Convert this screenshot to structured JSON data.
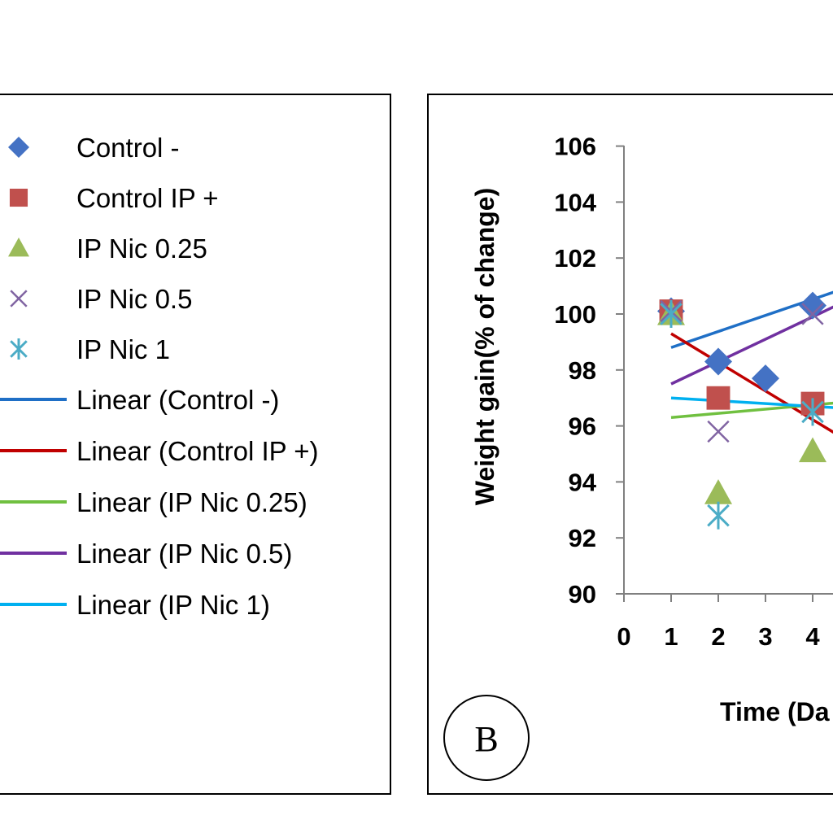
{
  "chart_data": {
    "type": "scatter",
    "panel_label": "B",
    "xlabel": "Time (Da",
    "ylabel": "Weight gain(% of change)",
    "x_ticks": [
      "0",
      "1",
      "2",
      "3",
      "4"
    ],
    "y_ticks": [
      "90",
      "92",
      "94",
      "96",
      "98",
      "100",
      "102",
      "104",
      "106"
    ],
    "xlim": [
      0,
      5
    ],
    "ylim": [
      90,
      106
    ],
    "grid": false,
    "legend_position": "left",
    "series": [
      {
        "name": "Control -",
        "marker": "diamond",
        "color": "#4472C4",
        "x": [
          1,
          2,
          3,
          4
        ],
        "y": [
          100.1,
          98.3,
          97.7,
          100.3
        ]
      },
      {
        "name": "Control IP +",
        "marker": "square",
        "color": "#C0504D",
        "x": [
          1,
          2,
          4
        ],
        "y": [
          100.1,
          97.0,
          96.8
        ]
      },
      {
        "name": "IP Nic 0.25",
        "marker": "triangle",
        "color": "#9BBB59",
        "x": [
          1,
          2,
          4
        ],
        "y": [
          100.0,
          93.6,
          95.1
        ]
      },
      {
        "name": "IP Nic 0.5",
        "marker": "x",
        "color": "#8064A2",
        "x": [
          1,
          2,
          4
        ],
        "y": [
          100.1,
          95.8,
          100.0
        ]
      },
      {
        "name": "IP Nic 1",
        "marker": "asterisk",
        "color": "#4BACC6",
        "x": [
          1,
          2,
          4
        ],
        "y": [
          100.0,
          92.8,
          96.5
        ]
      }
    ],
    "trendlines": [
      {
        "name": "Linear (Control -)",
        "color": "#1F6FC6",
        "x": [
          1,
          5
        ],
        "y": [
          98.8,
          101.1
        ]
      },
      {
        "name": "Linear (Control IP +)",
        "color": "#C00000",
        "x": [
          1,
          5
        ],
        "y": [
          99.3,
          95.2
        ]
      },
      {
        "name": "Linear (IP Nic 0.25)",
        "color": "#70C040",
        "x": [
          1,
          5
        ],
        "y": [
          96.3,
          96.9
        ]
      },
      {
        "name": "Linear (IP Nic 0.5)",
        "color": "#7030A0",
        "x": [
          1,
          5
        ],
        "y": [
          97.5,
          100.7
        ]
      },
      {
        "name": "Linear (IP Nic 1)",
        "color": "#00B0F0",
        "x": [
          1,
          5
        ],
        "y": [
          97.0,
          96.6
        ]
      }
    ]
  }
}
